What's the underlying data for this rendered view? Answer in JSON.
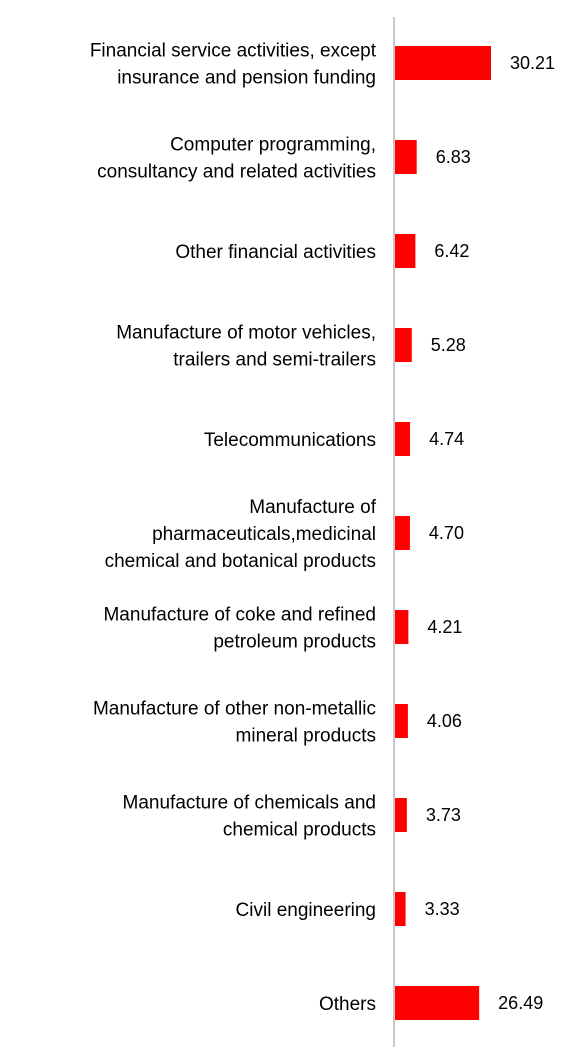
{
  "chart_data": {
    "type": "bar",
    "orientation": "horizontal",
    "categories": [
      [
        "Financial service activities, except",
        "insurance and pension funding"
      ],
      [
        "Computer programming,",
        "consultancy and related activities"
      ],
      [
        "Other financial activities"
      ],
      [
        "Manufacture of motor vehicles,",
        "trailers and semi-trailers"
      ],
      [
        "Telecommunications"
      ],
      [
        "Manufacture of",
        "pharmaceuticals,medicinal",
        "chemical and botanical products"
      ],
      [
        "Manufacture of coke and refined",
        "petroleum products"
      ],
      [
        "Manufacture of other non-metallic",
        "mineral products"
      ],
      [
        "Manufacture of chemicals and",
        "chemical products"
      ],
      [
        "Civil engineering"
      ],
      [
        "Others"
      ]
    ],
    "values": [
      30.21,
      6.83,
      6.42,
      5.28,
      4.74,
      4.7,
      4.21,
      4.06,
      3.73,
      3.33,
      26.49
    ],
    "value_labels": [
      "30.21",
      "6.83",
      "6.42",
      "5.28",
      "4.74",
      "4.70",
      "4.21",
      "4.06",
      "3.73",
      "3.33",
      "26.49"
    ],
    "title": "",
    "xlabel": "",
    "ylabel": "",
    "xlim": [
      0,
      32
    ],
    "grid": false,
    "legend": "none",
    "bar_color": "#ff0000",
    "axis_color": "#c8c8c8"
  }
}
